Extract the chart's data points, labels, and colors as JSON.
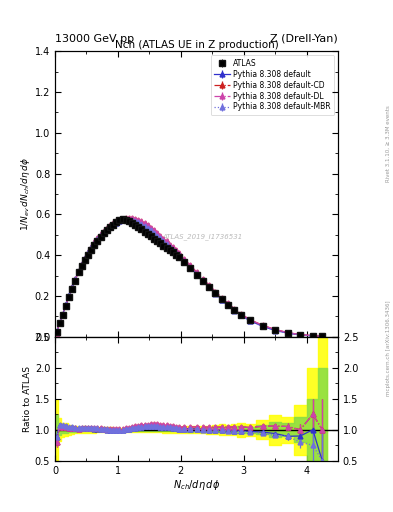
{
  "title_top": "13000 GeV pp",
  "title_top_right": "Z (Drell-Yan)",
  "title_main": "Nch (ATLAS UE in Z production)",
  "xlabel": "$N_{ch}/d\\eta\\,d\\phi$",
  "ylabel_main": "$1/N_{ev}\\,dN_{ch}/d\\eta\\,d\\phi$",
  "ylabel_ratio": "Ratio to ATLAS",
  "right_label_top": "Rivet 3.1.10, ≥ 3.3M events",
  "right_label_bot": "mcplots.cern.ch [arXiv:1306.3436]",
  "watermark": "ATLAS_2019_I1736531",
  "ylim_main": [
    0.0,
    1.4
  ],
  "ylim_ratio": [
    0.5,
    2.5
  ],
  "xlim": [
    0.0,
    4.5
  ],
  "atlas_x": [
    0.025,
    0.075,
    0.125,
    0.175,
    0.225,
    0.275,
    0.325,
    0.375,
    0.425,
    0.475,
    0.525,
    0.575,
    0.625,
    0.675,
    0.725,
    0.775,
    0.825,
    0.875,
    0.925,
    0.975,
    1.025,
    1.075,
    1.125,
    1.175,
    1.225,
    1.275,
    1.325,
    1.375,
    1.425,
    1.475,
    1.525,
    1.575,
    1.625,
    1.675,
    1.725,
    1.775,
    1.825,
    1.875,
    1.925,
    1.975,
    2.05,
    2.15,
    2.25,
    2.35,
    2.45,
    2.55,
    2.65,
    2.75,
    2.85,
    2.95,
    3.1,
    3.3,
    3.5,
    3.7,
    3.9,
    4.1,
    4.25
  ],
  "atlas_y": [
    0.025,
    0.065,
    0.105,
    0.15,
    0.195,
    0.235,
    0.275,
    0.315,
    0.345,
    0.375,
    0.4,
    0.425,
    0.45,
    0.47,
    0.49,
    0.51,
    0.525,
    0.54,
    0.55,
    0.56,
    0.57,
    0.575,
    0.57,
    0.565,
    0.558,
    0.548,
    0.537,
    0.526,
    0.515,
    0.504,
    0.492,
    0.481,
    0.469,
    0.458,
    0.447,
    0.436,
    0.424,
    0.413,
    0.402,
    0.392,
    0.365,
    0.335,
    0.303,
    0.272,
    0.242,
    0.212,
    0.183,
    0.156,
    0.131,
    0.108,
    0.08,
    0.053,
    0.033,
    0.019,
    0.01,
    0.004,
    0.002
  ],
  "atlas_yerr": [
    0.003,
    0.003,
    0.003,
    0.004,
    0.004,
    0.004,
    0.004,
    0.004,
    0.004,
    0.005,
    0.005,
    0.005,
    0.005,
    0.005,
    0.005,
    0.005,
    0.005,
    0.005,
    0.005,
    0.005,
    0.005,
    0.005,
    0.005,
    0.005,
    0.005,
    0.005,
    0.005,
    0.005,
    0.005,
    0.005,
    0.005,
    0.005,
    0.005,
    0.005,
    0.005,
    0.005,
    0.005,
    0.005,
    0.005,
    0.005,
    0.005,
    0.005,
    0.004,
    0.004,
    0.004,
    0.004,
    0.004,
    0.003,
    0.003,
    0.003,
    0.002,
    0.002,
    0.002,
    0.001,
    0.001,
    0.001,
    0.001
  ],
  "pythia_x": [
    0.025,
    0.075,
    0.125,
    0.175,
    0.225,
    0.275,
    0.325,
    0.375,
    0.425,
    0.475,
    0.525,
    0.575,
    0.625,
    0.675,
    0.725,
    0.775,
    0.825,
    0.875,
    0.925,
    0.975,
    1.025,
    1.075,
    1.125,
    1.175,
    1.225,
    1.275,
    1.325,
    1.375,
    1.425,
    1.475,
    1.525,
    1.575,
    1.625,
    1.675,
    1.725,
    1.775,
    1.825,
    1.875,
    1.925,
    1.975,
    2.05,
    2.15,
    2.25,
    2.35,
    2.45,
    2.55,
    2.65,
    2.75,
    2.85,
    2.95,
    3.1,
    3.3,
    3.5,
    3.7,
    3.9,
    4.1,
    4.25
  ],
  "py_default_y": [
    0.022,
    0.07,
    0.112,
    0.158,
    0.202,
    0.244,
    0.284,
    0.322,
    0.355,
    0.385,
    0.412,
    0.437,
    0.459,
    0.479,
    0.497,
    0.513,
    0.527,
    0.539,
    0.55,
    0.558,
    0.565,
    0.57,
    0.573,
    0.573,
    0.571,
    0.567,
    0.56,
    0.552,
    0.543,
    0.532,
    0.52,
    0.508,
    0.495,
    0.481,
    0.468,
    0.454,
    0.44,
    0.426,
    0.412,
    0.399,
    0.371,
    0.34,
    0.307,
    0.274,
    0.243,
    0.212,
    0.182,
    0.155,
    0.129,
    0.106,
    0.078,
    0.051,
    0.031,
    0.017,
    0.009,
    0.004,
    0.001
  ],
  "py_cd_y": [
    0.02,
    0.068,
    0.11,
    0.156,
    0.2,
    0.242,
    0.282,
    0.32,
    0.354,
    0.385,
    0.413,
    0.439,
    0.462,
    0.483,
    0.502,
    0.518,
    0.533,
    0.546,
    0.557,
    0.566,
    0.573,
    0.579,
    0.582,
    0.583,
    0.582,
    0.578,
    0.572,
    0.565,
    0.556,
    0.546,
    0.534,
    0.522,
    0.509,
    0.495,
    0.481,
    0.467,
    0.452,
    0.438,
    0.423,
    0.409,
    0.381,
    0.35,
    0.317,
    0.284,
    0.252,
    0.221,
    0.191,
    0.163,
    0.137,
    0.113,
    0.083,
    0.056,
    0.035,
    0.02,
    0.01,
    0.005,
    0.002
  ],
  "py_dl_y": [
    0.02,
    0.068,
    0.11,
    0.156,
    0.2,
    0.242,
    0.282,
    0.32,
    0.354,
    0.385,
    0.413,
    0.439,
    0.462,
    0.483,
    0.502,
    0.518,
    0.533,
    0.546,
    0.557,
    0.566,
    0.573,
    0.579,
    0.582,
    0.583,
    0.582,
    0.578,
    0.572,
    0.565,
    0.556,
    0.546,
    0.534,
    0.522,
    0.509,
    0.495,
    0.481,
    0.467,
    0.452,
    0.438,
    0.423,
    0.409,
    0.381,
    0.35,
    0.317,
    0.284,
    0.252,
    0.221,
    0.191,
    0.163,
    0.137,
    0.113,
    0.083,
    0.056,
    0.035,
    0.02,
    0.01,
    0.005,
    0.002
  ],
  "py_mbr_y": [
    0.022,
    0.07,
    0.113,
    0.159,
    0.203,
    0.245,
    0.285,
    0.322,
    0.356,
    0.386,
    0.413,
    0.438,
    0.46,
    0.48,
    0.498,
    0.514,
    0.528,
    0.54,
    0.551,
    0.559,
    0.566,
    0.571,
    0.574,
    0.574,
    0.572,
    0.568,
    0.561,
    0.553,
    0.544,
    0.533,
    0.521,
    0.509,
    0.496,
    0.482,
    0.469,
    0.455,
    0.44,
    0.426,
    0.412,
    0.399,
    0.37,
    0.339,
    0.306,
    0.273,
    0.242,
    0.211,
    0.181,
    0.154,
    0.128,
    0.105,
    0.077,
    0.05,
    0.03,
    0.017,
    0.008,
    0.003,
    0.001
  ],
  "py_default_yerr": [
    0.002,
    0.002,
    0.002,
    0.002,
    0.002,
    0.002,
    0.002,
    0.002,
    0.002,
    0.002,
    0.003,
    0.003,
    0.003,
    0.003,
    0.003,
    0.003,
    0.003,
    0.003,
    0.003,
    0.003,
    0.003,
    0.003,
    0.003,
    0.003,
    0.003,
    0.003,
    0.003,
    0.003,
    0.003,
    0.003,
    0.003,
    0.003,
    0.003,
    0.003,
    0.003,
    0.003,
    0.003,
    0.003,
    0.003,
    0.003,
    0.003,
    0.003,
    0.003,
    0.003,
    0.003,
    0.002,
    0.002,
    0.002,
    0.002,
    0.002,
    0.002,
    0.001,
    0.001,
    0.001,
    0.001,
    0.001,
    0.001
  ],
  "color_default": "#3030cc",
  "color_cd": "#cc2020",
  "color_dl": "#cc44aa",
  "color_mbr": "#7070dd",
  "color_atlas": "#111111",
  "band_yellow_lo": 0.8,
  "band_yellow_hi": 1.2,
  "band_green_lo": 0.9,
  "band_green_hi": 1.1
}
